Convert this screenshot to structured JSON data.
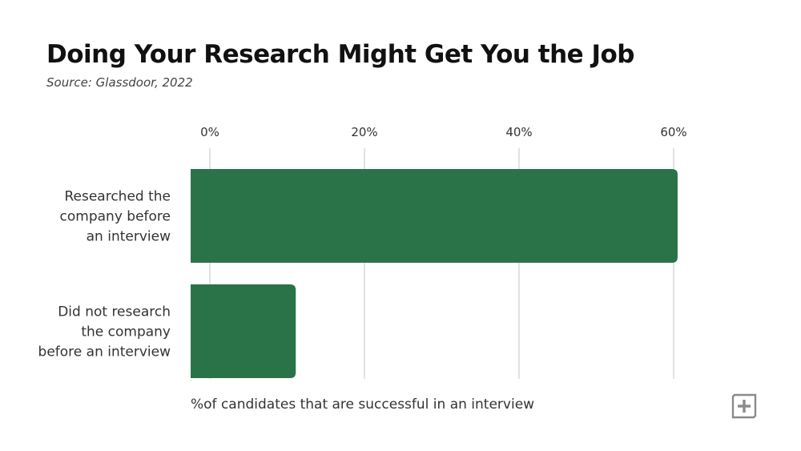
{
  "title": "Doing Your Research Might Get You the Job",
  "subtitle": "Source: Glassdoor, 2022",
  "icons": {
    "logo": "plus-square-logo-icon"
  },
  "colors": {
    "bar": "#2a7349",
    "grid": "#d9d9d9",
    "text": "#333333"
  },
  "chart_data": {
    "type": "bar",
    "orientation": "horizontal",
    "categories": [
      [
        "Researched the",
        "company before",
        "an interview"
      ],
      [
        "Did not research",
        "the company",
        "before an interview"
      ]
    ],
    "values": [
      63,
      13.6
    ],
    "xticks": [
      "0%",
      "20%",
      "40%",
      "60%"
    ],
    "xtick_values": [
      0,
      20,
      40,
      60
    ],
    "xlim": [
      0,
      63
    ],
    "xaxis_position": "top",
    "grid": true,
    "xlabel": "%of candidates that are successful in an interview"
  }
}
